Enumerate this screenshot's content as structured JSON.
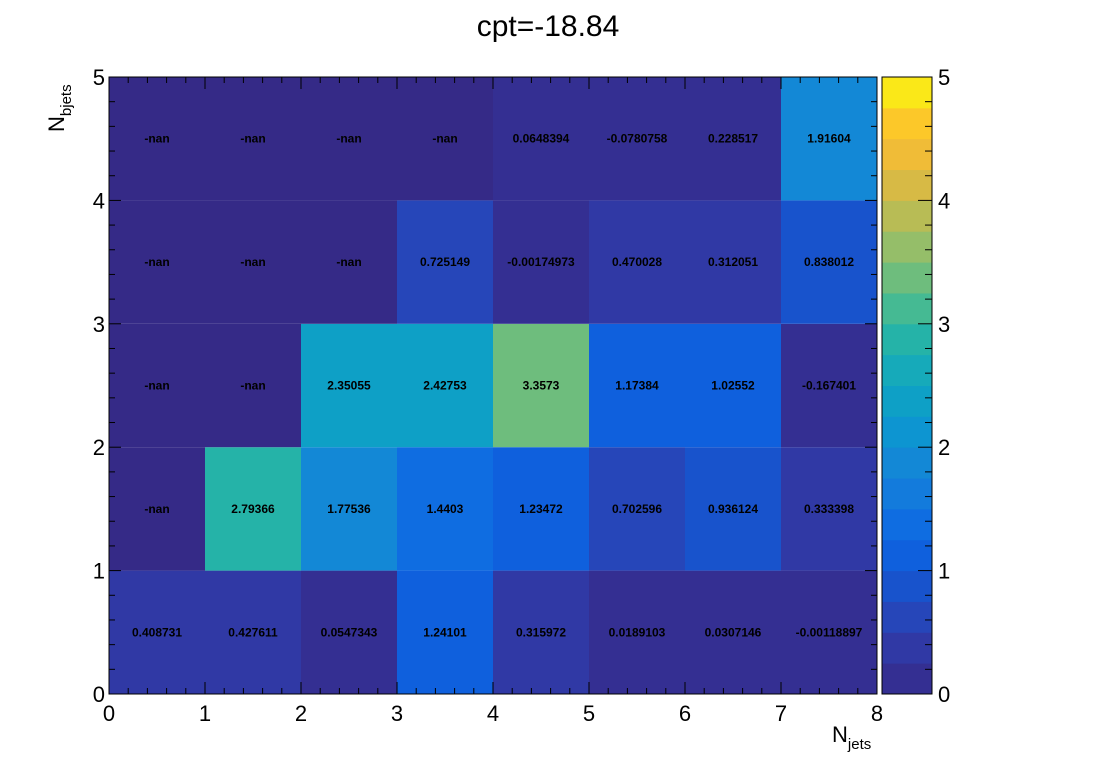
{
  "chart_data": {
    "type": "heatmap",
    "title": "cpt=-18.84",
    "xlabel_main": "N",
    "xlabel_sub": "jets",
    "ylabel_main": "N",
    "ylabel_sub": "bjets",
    "xlim": [
      0,
      8
    ],
    "ylim": [
      0,
      5
    ],
    "x_ticks": [
      "0",
      "1",
      "2",
      "3",
      "4",
      "5",
      "6",
      "7",
      "8"
    ],
    "y_ticks": [
      "0",
      "1",
      "2",
      "3",
      "4",
      "5"
    ],
    "colorbar": {
      "range": [
        0,
        5
      ],
      "ticks": [
        "0",
        "1",
        "2",
        "3",
        "4",
        "5"
      ],
      "levels": 20
    },
    "rows": [
      {
        "y": 0.5,
        "labels": [
          "0.408731",
          "0.427611",
          "0.0547343",
          "1.24101",
          "0.315972",
          "0.0189103",
          "0.0307146",
          "-0.00118897"
        ],
        "values": [
          0.408731,
          0.427611,
          0.0547343,
          1.24101,
          0.315972,
          0.0189103,
          0.0307146,
          -0.00118897
        ]
      },
      {
        "y": 1.5,
        "labels": [
          "-nan",
          "2.79366",
          "1.77536",
          "1.4403",
          "1.23472",
          "0.702596",
          "0.936124",
          "0.333398"
        ],
        "values": [
          null,
          2.79366,
          1.77536,
          1.4403,
          1.23472,
          0.702596,
          0.936124,
          0.333398
        ]
      },
      {
        "y": 2.5,
        "labels": [
          "-nan",
          "-nan",
          "2.35055",
          "2.42753",
          "3.3573",
          "1.17384",
          "1.02552",
          "-0.167401"
        ],
        "values": [
          null,
          null,
          2.35055,
          2.42753,
          3.3573,
          1.17384,
          1.02552,
          -0.167401
        ]
      },
      {
        "y": 3.5,
        "labels": [
          "-nan",
          "-nan",
          "-nan",
          "0.725149",
          "-0.00174973",
          "0.470028",
          "0.312051",
          "0.838012"
        ],
        "values": [
          null,
          null,
          null,
          0.725149,
          -0.00174973,
          0.470028,
          0.312051,
          0.838012
        ]
      },
      {
        "y": 4.5,
        "labels": [
          "-nan",
          "-nan",
          "-nan",
          "-nan",
          "0.0648394",
          "-0.0780758",
          "0.228517",
          "1.91604"
        ],
        "values": [
          null,
          null,
          null,
          null,
          0.0648394,
          -0.0780758,
          0.228517,
          1.91604
        ]
      }
    ]
  }
}
